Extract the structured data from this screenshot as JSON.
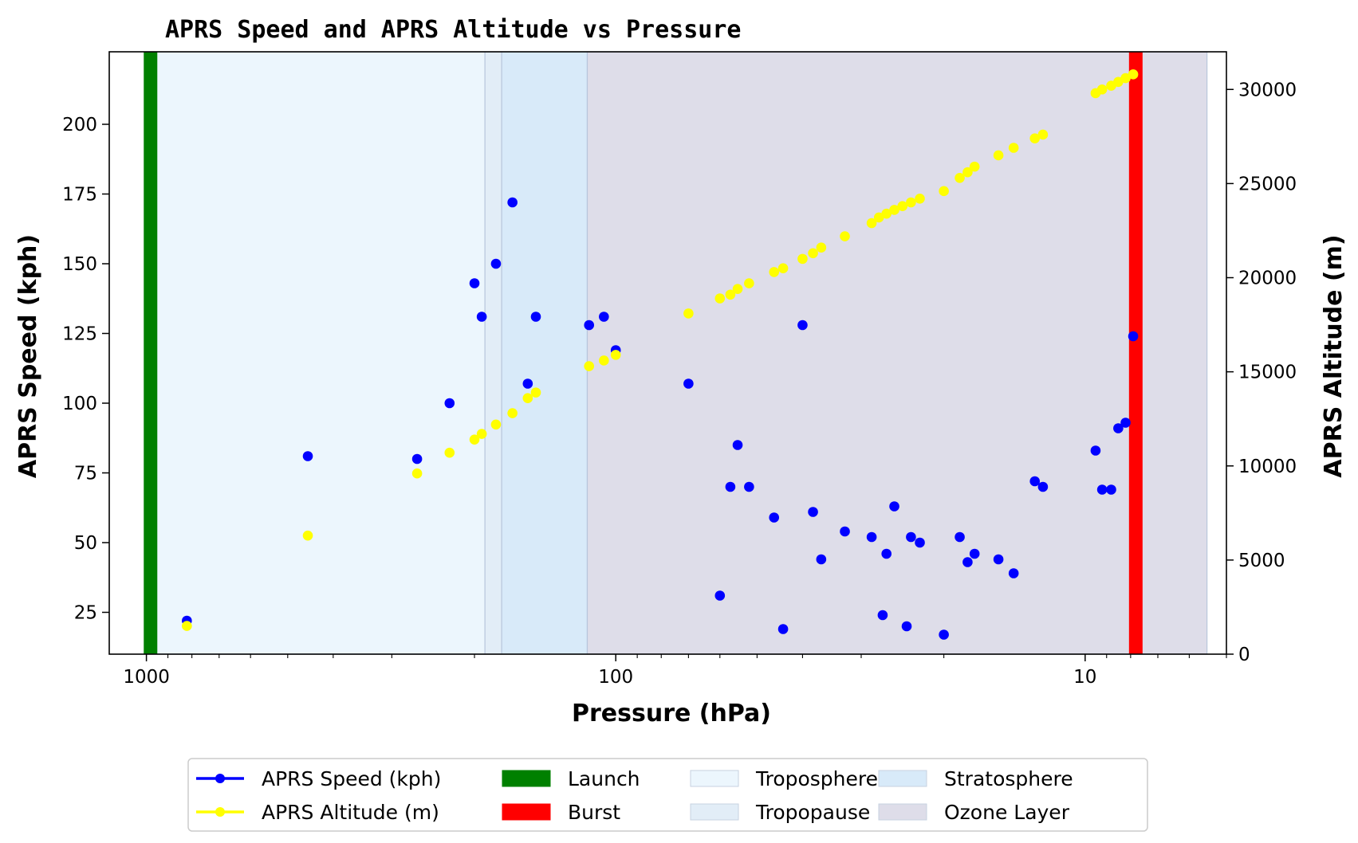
{
  "chart_data": {
    "type": "scatter",
    "title": "APRS Speed and APRS Altitude vs Pressure",
    "xlabel": "Pressure (hPa)",
    "ylabel_left": "APRS Speed (kph)",
    "ylabel_right": "APRS Altitude (m)",
    "x_scale": "log",
    "x_reversed": true,
    "xlim": [
      1200,
      5
    ],
    "ylim_left": [
      10,
      226
    ],
    "ylim_right": [
      0,
      32000
    ],
    "x_ticks": [
      1000,
      100,
      10
    ],
    "x_tick_labels": [
      "1000",
      "100",
      "10"
    ],
    "y_left_ticks": [
      25,
      50,
      75,
      100,
      125,
      150,
      175,
      200
    ],
    "y_right_ticks": [
      0,
      5000,
      10000,
      15000,
      20000,
      25000,
      30000
    ],
    "grid": false,
    "legend_position": "bottom-center",
    "series": [
      {
        "name": "APRS Speed (kph)",
        "axis": "left",
        "color": "#0000ff",
        "points": [
          [
            820,
            22
          ],
          [
            453,
            81
          ],
          [
            265,
            80
          ],
          [
            226,
            100
          ],
          [
            200,
            143
          ],
          [
            193,
            131
          ],
          [
            180,
            150
          ],
          [
            166,
            172
          ],
          [
            154,
            107
          ],
          [
            148,
            131
          ],
          [
            114,
            128
          ],
          [
            106,
            131
          ],
          [
            100,
            119
          ],
          [
            70,
            107
          ],
          [
            60,
            31
          ],
          [
            57,
            70
          ],
          [
            55,
            85
          ],
          [
            52,
            70
          ],
          [
            46,
            59
          ],
          [
            44,
            19
          ],
          [
            40,
            128
          ],
          [
            38,
            61
          ],
          [
            36.5,
            44
          ],
          [
            32.5,
            54
          ],
          [
            28.5,
            52
          ],
          [
            27,
            24
          ],
          [
            26.5,
            46
          ],
          [
            25.5,
            63
          ],
          [
            24,
            20
          ],
          [
            23.5,
            52
          ],
          [
            22.5,
            50
          ],
          [
            20,
            17
          ],
          [
            18.5,
            52
          ],
          [
            17.8,
            43
          ],
          [
            17.2,
            46
          ],
          [
            15.3,
            44
          ],
          [
            14.2,
            39
          ],
          [
            12.8,
            72
          ],
          [
            12.3,
            70
          ],
          [
            9.5,
            83
          ],
          [
            9.2,
            69
          ],
          [
            8.8,
            69
          ],
          [
            8.5,
            91
          ],
          [
            8.2,
            93
          ],
          [
            7.9,
            124
          ]
        ]
      },
      {
        "name": "APRS Altitude (m)",
        "axis": "right",
        "color": "#ffff00",
        "points": [
          [
            820,
            1500
          ],
          [
            453,
            6300
          ],
          [
            265,
            9600
          ],
          [
            226,
            10700
          ],
          [
            200,
            11400
          ],
          [
            193,
            11700
          ],
          [
            180,
            12200
          ],
          [
            166,
            12800
          ],
          [
            154,
            13600
          ],
          [
            148,
            13900
          ],
          [
            114,
            15300
          ],
          [
            106,
            15600
          ],
          [
            100,
            15900
          ],
          [
            70,
            18100
          ],
          [
            60,
            18900
          ],
          [
            57,
            19100
          ],
          [
            55,
            19400
          ],
          [
            52,
            19700
          ],
          [
            46,
            20300
          ],
          [
            44,
            20500
          ],
          [
            40,
            21000
          ],
          [
            38,
            21300
          ],
          [
            36.5,
            21600
          ],
          [
            32.5,
            22200
          ],
          [
            28.5,
            22900
          ],
          [
            27.5,
            23200
          ],
          [
            26.5,
            23400
          ],
          [
            25.5,
            23600
          ],
          [
            24.5,
            23800
          ],
          [
            23.5,
            24000
          ],
          [
            22.5,
            24200
          ],
          [
            20,
            24600
          ],
          [
            18.5,
            25300
          ],
          [
            17.8,
            25600
          ],
          [
            17.2,
            25900
          ],
          [
            15.3,
            26500
          ],
          [
            14.2,
            26900
          ],
          [
            12.8,
            27400
          ],
          [
            12.3,
            27600
          ],
          [
            9.5,
            29800
          ],
          [
            9.2,
            30000
          ],
          [
            8.8,
            30200
          ],
          [
            8.5,
            30400
          ],
          [
            8.2,
            30600
          ],
          [
            7.9,
            30800
          ]
        ]
      }
    ],
    "vertical_lines": [
      {
        "name": "Launch",
        "x": 980,
        "color": "#008000"
      },
      {
        "name": "Burst",
        "x": 7.8,
        "color": "#ff0000"
      }
    ],
    "spans": [
      {
        "name": "Troposphere",
        "from": 1000,
        "to": 190,
        "color": "#ecf6fd"
      },
      {
        "name": "Tropopause",
        "from": 190,
        "to": 175,
        "color": "#e2edf7"
      },
      {
        "name": "Stratosphere",
        "from": 175,
        "to": 115,
        "color": "#d8eaf9"
      },
      {
        "name": "Ozone Layer",
        "from": 115,
        "to": 5.5,
        "color": "#dedde9"
      }
    ],
    "legend": [
      {
        "label": "APRS Speed (kph)",
        "kind": "line-marker",
        "color": "#0000ff"
      },
      {
        "label": "APRS Altitude (m)",
        "kind": "line-marker",
        "color": "#ffff00"
      },
      {
        "label": "Launch",
        "kind": "patch",
        "color": "#008000"
      },
      {
        "label": "Burst",
        "kind": "patch",
        "color": "#ff0000"
      },
      {
        "label": "Troposphere",
        "kind": "patch",
        "color": "#ecf6fd"
      },
      {
        "label": "Tropopause",
        "kind": "patch",
        "color": "#e2edf7"
      },
      {
        "label": "Stratosphere",
        "kind": "patch",
        "color": "#d8eaf9"
      },
      {
        "label": "Ozone Layer",
        "kind": "patch",
        "color": "#dedde9"
      }
    ]
  }
}
